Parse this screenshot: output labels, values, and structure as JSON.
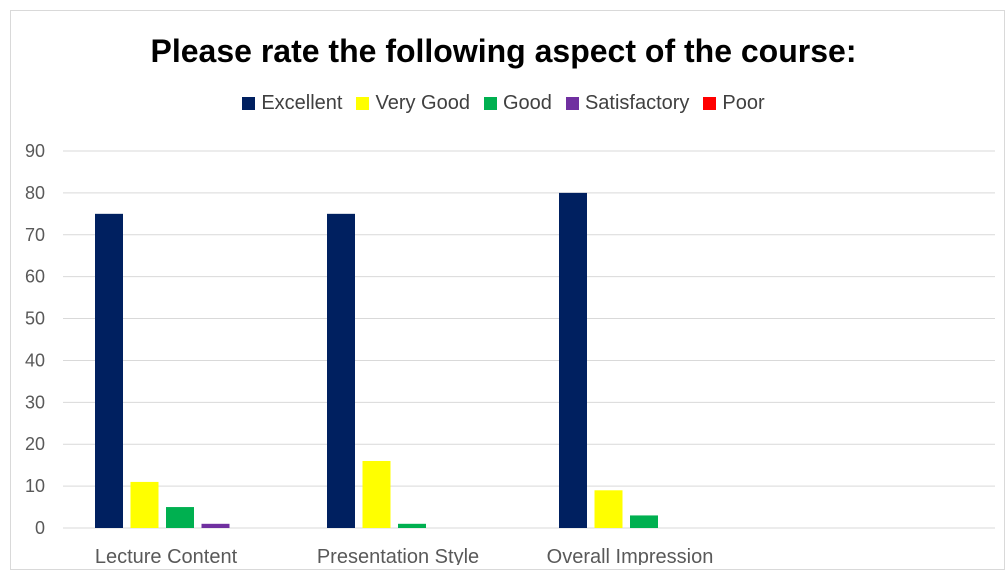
{
  "chart_data": {
    "type": "bar",
    "title": "Please rate the following aspect of the course:",
    "xlabel": "",
    "ylabel": "",
    "categories": [
      "Lecture Content",
      "Presentation Style",
      "Overall Impression"
    ],
    "series": [
      {
        "name": "Excellent",
        "color": "#002060",
        "values": [
          75,
          75,
          80
        ]
      },
      {
        "name": "Very Good",
        "color": "#FFFF00",
        "values": [
          11,
          16,
          9
        ]
      },
      {
        "name": "Good",
        "color": "#00B050",
        "values": [
          5,
          1,
          3
        ]
      },
      {
        "name": "Satisfactory",
        "color": "#7030A0",
        "values": [
          1,
          0,
          0
        ]
      },
      {
        "name": "Poor",
        "color": "#FF0000",
        "values": [
          0,
          0,
          0
        ]
      }
    ],
    "ylim": [
      0,
      90
    ],
    "yticks": [
      0,
      10,
      20,
      30,
      40,
      50,
      60,
      70,
      80,
      90
    ],
    "grid": true,
    "legend_position": "top"
  }
}
